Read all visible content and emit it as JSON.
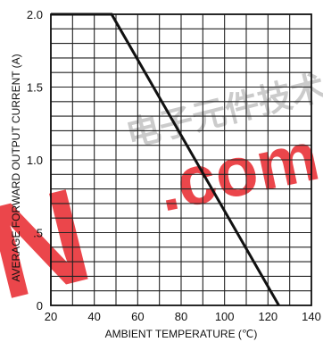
{
  "chart_data": {
    "type": "line",
    "xlabel": "AMBIENT TEMPERATURE (℃)",
    "ylabel": "AVERAGE FORWARD OUTPUT CURRENT  (A)",
    "xlim": [
      20,
      140
    ],
    "ylim": [
      0,
      2.0
    ],
    "x_ticks": [
      "20",
      "40",
      "60",
      "80",
      "100",
      "120",
      "140"
    ],
    "y_ticks": [
      "0",
      ".5",
      "1.0",
      "1.5",
      "2.0"
    ],
    "x_ticks_values": [
      20,
      40,
      60,
      80,
      100,
      120,
      140
    ],
    "y_ticks_values": [
      0,
      0.5,
      1.0,
      1.5,
      2.0
    ],
    "grid": true,
    "grid_x_step": 10,
    "grid_y_step": 0.1,
    "series": [
      {
        "x": [
          20,
          48,
          125
        ],
        "y": [
          2.0,
          2.0,
          0
        ]
      }
    ],
    "line_color": "#111111",
    "grid_color": "#222222"
  },
  "watermark": {
    "text_cn": "电子元件技术网",
    "text_com": ".com",
    "text_left": "N",
    "color": "#e8262b",
    "color_cn": "#b9b9b9"
  }
}
